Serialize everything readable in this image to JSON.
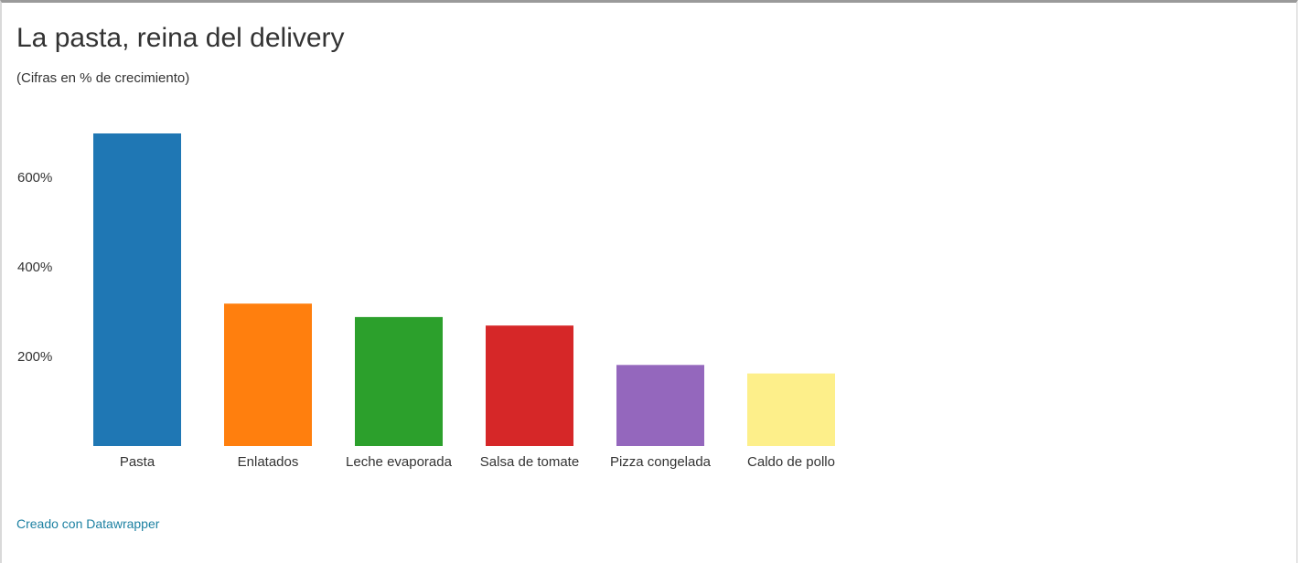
{
  "header": {
    "title": "La pasta, reina del delivery",
    "subtitle": "(Cifras en % de crecimiento)"
  },
  "footer": {
    "credit": "Creado con Datawrapper"
  },
  "chart_data": {
    "type": "bar",
    "title": "La pasta, reina del delivery",
    "subtitle": "(Cifras en % de crecimiento)",
    "categories": [
      "Pasta",
      "Enlatados",
      "Leche evaporada",
      "Salsa de tomate",
      "Pizza congelada",
      "Caldo de pollo"
    ],
    "values": [
      698,
      318,
      288,
      269,
      181,
      162
    ],
    "colors": [
      "#1f77b4",
      "#ff7f0e",
      "#2ca02c",
      "#d62728",
      "#9467bd",
      "#fdef8a"
    ],
    "yticks": [
      200,
      400,
      600
    ],
    "ytick_labels": [
      "200%",
      "400%",
      "600%"
    ],
    "ylim": [
      0,
      700
    ],
    "grid": false,
    "legend": "none"
  }
}
